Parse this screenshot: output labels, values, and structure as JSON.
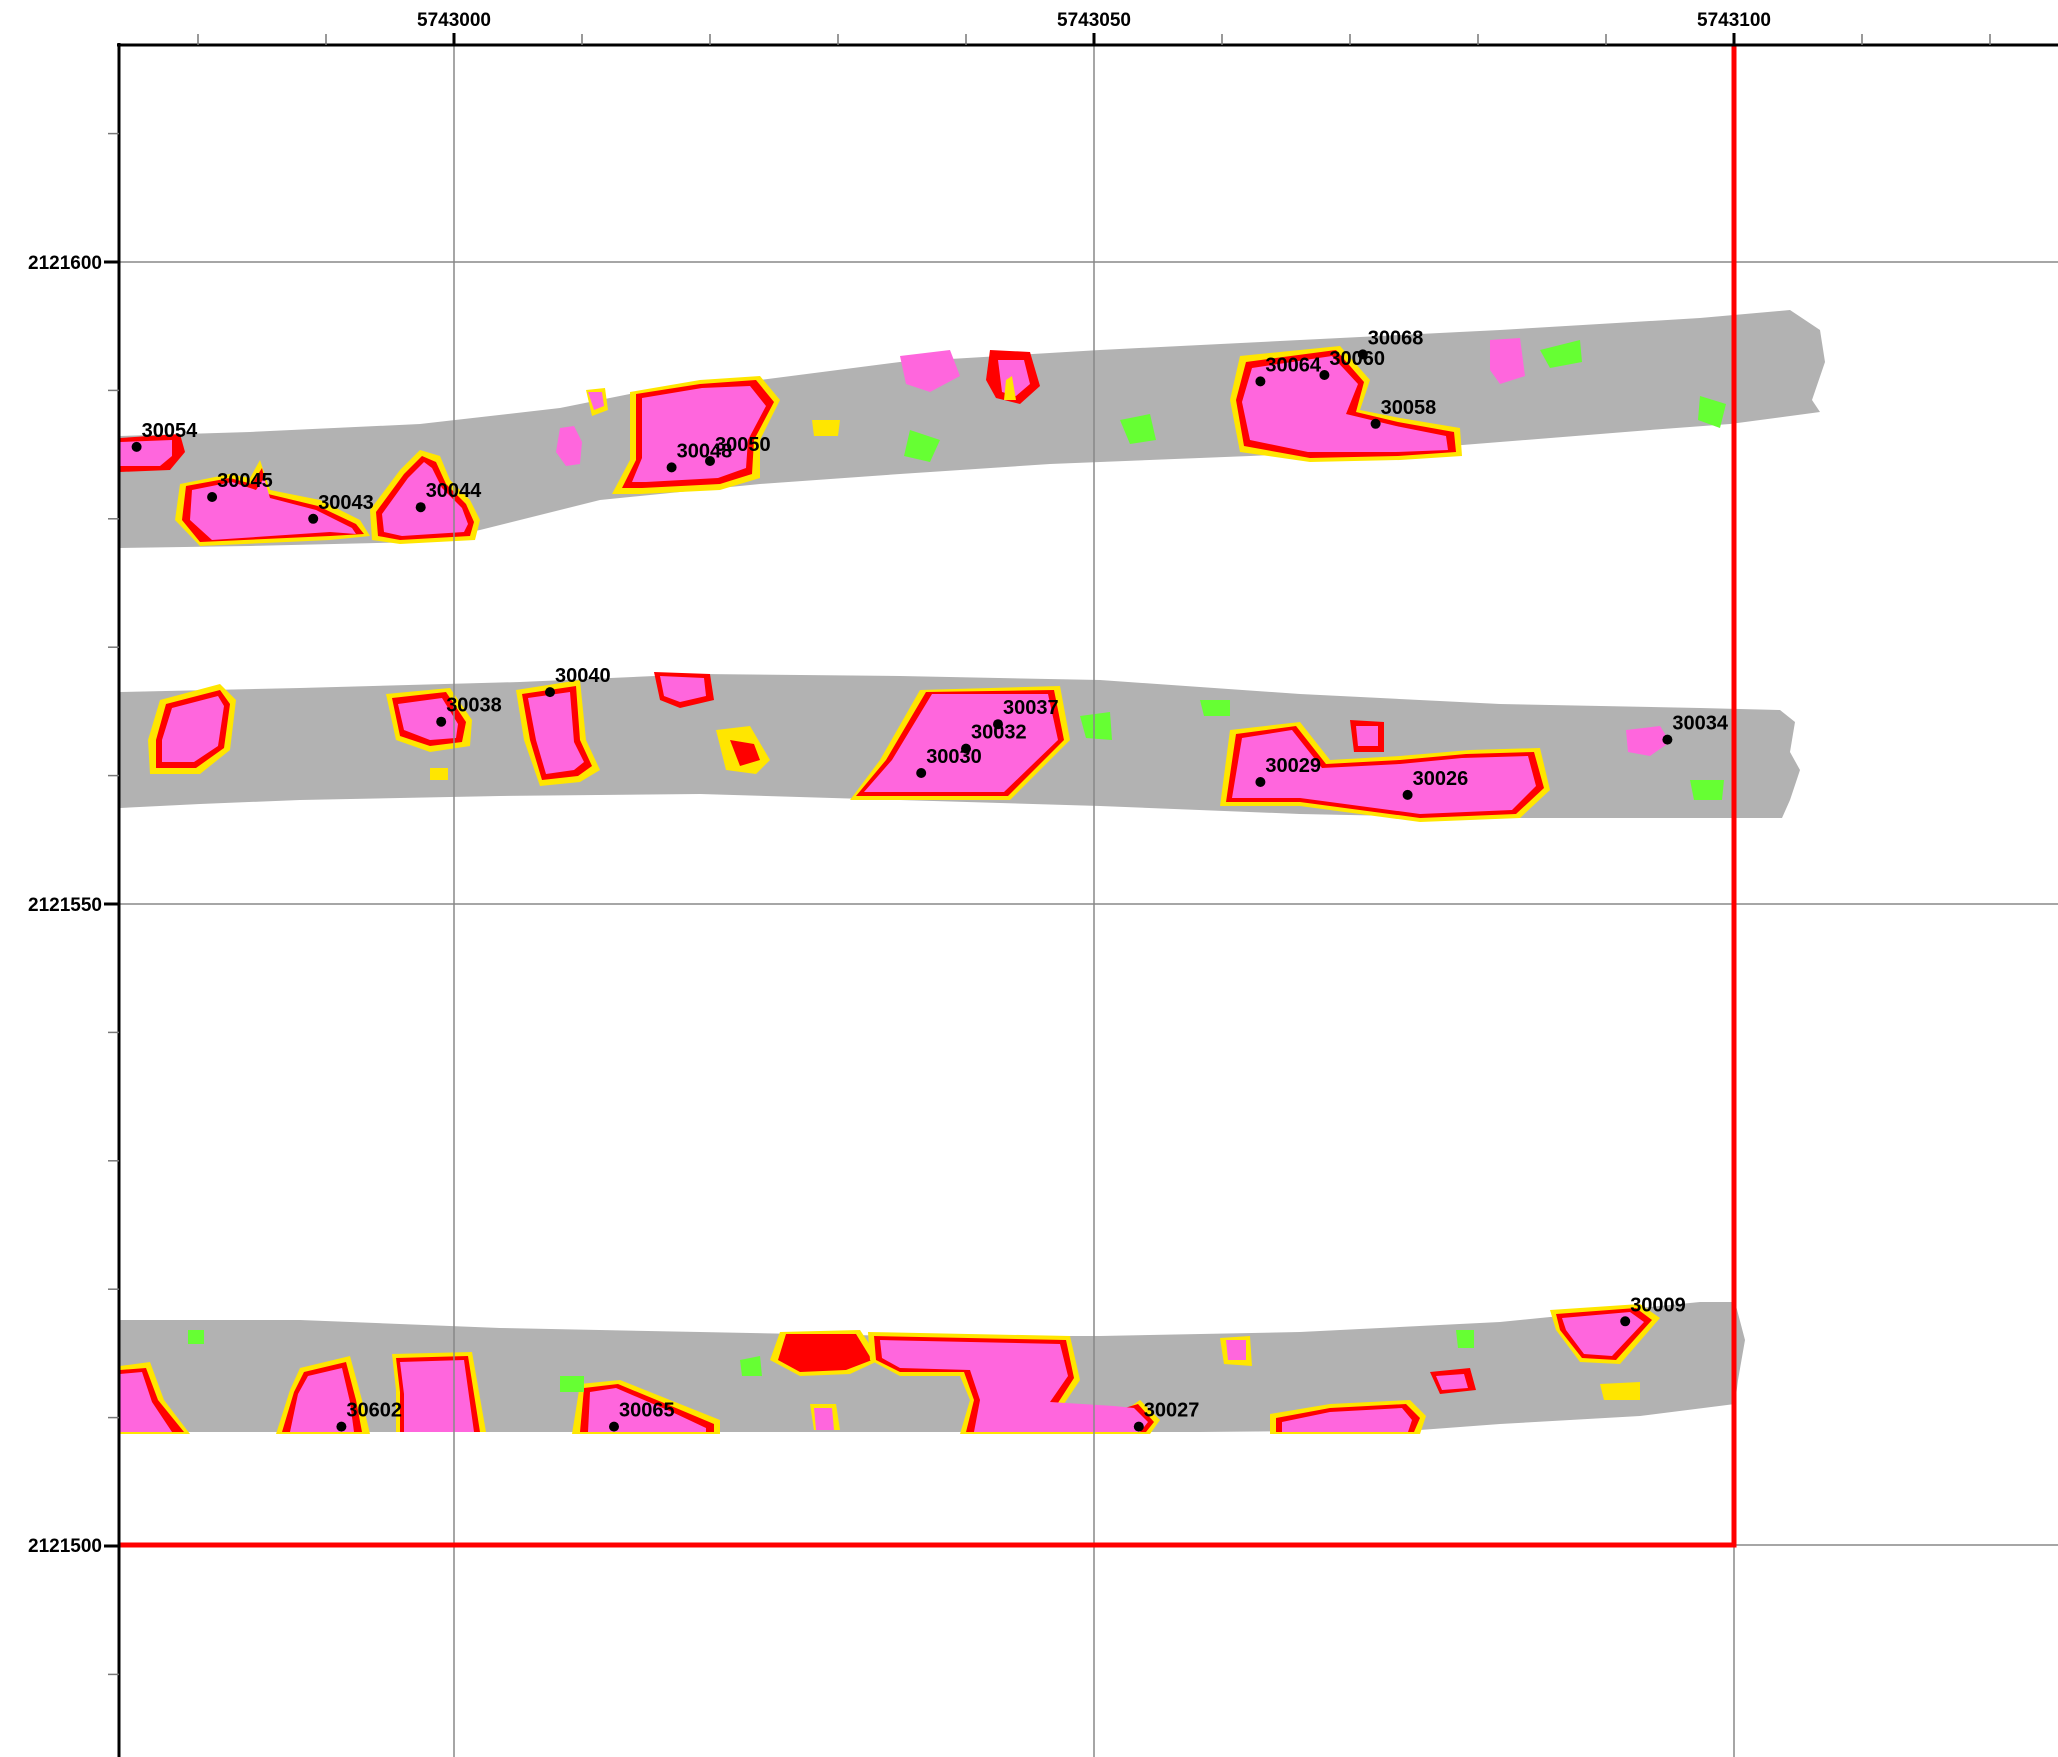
{
  "colors": {
    "background": "#ffffff",
    "survey_fill": "#b2b2b2",
    "anomaly_high": "#ff66dd",
    "anomaly_mid": "#ff0000",
    "anomaly_low": "#ffe600",
    "anomaly_faint": "#66ff33",
    "boundary": "#ff0000",
    "grid": "#888888",
    "axis": "#000000",
    "point": "#000000"
  },
  "chart_data": {
    "type": "map",
    "x_axis": {
      "range": [
        5742974,
        5743126
      ],
      "major_ticks": [
        5743000,
        5743050,
        5743100
      ],
      "tick_labels": [
        "5743000",
        "5743050",
        "5743100"
      ],
      "minor_step": 10
    },
    "y_axis": {
      "range": [
        2121483,
        2121617
      ],
      "major_ticks": [
        2121500,
        2121550,
        2121600
      ],
      "tick_labels": [
        "2121500",
        "2121550",
        "2121600"
      ],
      "minor_step": 10
    },
    "grid": true,
    "boundary": {
      "x_max": 5743100,
      "y_min": 2121500,
      "color": "#ff0000"
    },
    "points": [
      {
        "id": "30054",
        "x": 5742975.2,
        "y": 2121585.6
      },
      {
        "id": "30045",
        "x": 5742981.1,
        "y": 2121581.7
      },
      {
        "id": "30043",
        "x": 5742989.0,
        "y": 2121580.0
      },
      {
        "id": "30044",
        "x": 5742997.4,
        "y": 2121580.9
      },
      {
        "id": "30048",
        "x": 5743017.0,
        "y": 2121584.0
      },
      {
        "id": "30050",
        "x": 5743020.0,
        "y": 2121584.5
      },
      {
        "id": "30064",
        "x": 5743063.0,
        "y": 2121590.7
      },
      {
        "id": "30060",
        "x": 5743068.0,
        "y": 2121591.2
      },
      {
        "id": "30068",
        "x": 5743071.0,
        "y": 2121592.8
      },
      {
        "id": "30058",
        "x": 5743072.0,
        "y": 2121587.4
      },
      {
        "id": "30040",
        "x": 5743007.5,
        "y": 2121566.5
      },
      {
        "id": "30038",
        "x": 5742999.0,
        "y": 2121564.2
      },
      {
        "id": "30037",
        "x": 5743042.5,
        "y": 2121564.0
      },
      {
        "id": "30032",
        "x": 5743040.0,
        "y": 2121562.1
      },
      {
        "id": "30030",
        "x": 5743036.5,
        "y": 2121560.2
      },
      {
        "id": "30029",
        "x": 5743063.0,
        "y": 2121559.5
      },
      {
        "id": "30026",
        "x": 5743074.5,
        "y": 2121558.5
      },
      {
        "id": "30034",
        "x": 5743094.8,
        "y": 2121562.8
      },
      {
        "id": "30009",
        "x": 5743091.5,
        "y": 2121517.5
      },
      {
        "id": "30602",
        "x": 5742991.2,
        "y": 2121509.3
      },
      {
        "id": "30065",
        "x": 5743012.5,
        "y": 2121509.3
      },
      {
        "id": "30027",
        "x": 5743053.5,
        "y": 2121509.3
      }
    ]
  }
}
